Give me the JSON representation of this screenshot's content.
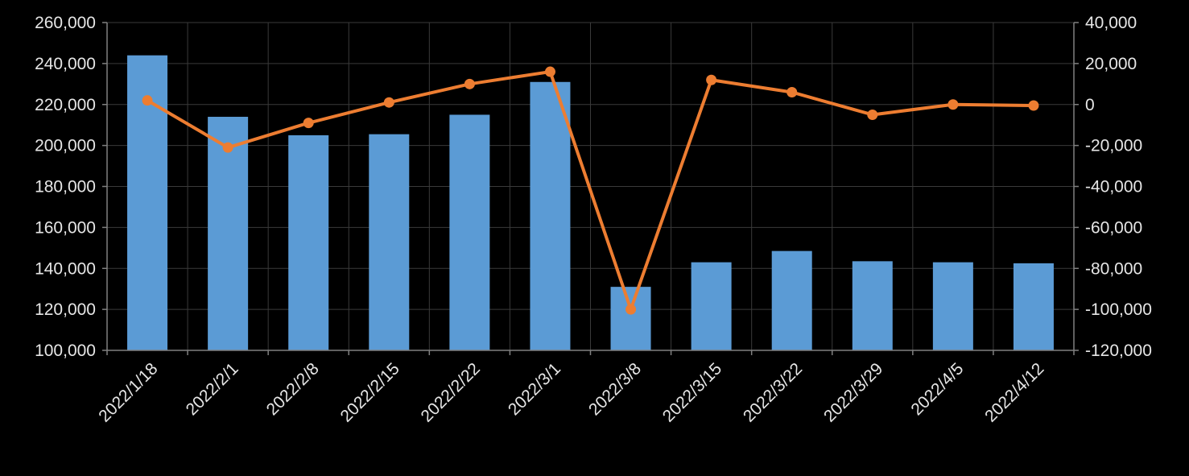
{
  "chart_data": {
    "type": "bar+line",
    "title": "",
    "categories": [
      "2022/1/18",
      "2022/2/1",
      "2022/2/8",
      "2022/2/15",
      "2022/2/22",
      "2022/3/1",
      "2022/3/8",
      "2022/3/15",
      "2022/3/22",
      "2022/3/29",
      "2022/4/5",
      "2022/4/12"
    ],
    "series": [
      {
        "type": "bar",
        "axis": "left",
        "color": "#5b9bd5",
        "values": [
          244000,
          214000,
          205000,
          205500,
          215000,
          231000,
          131000,
          143000,
          148500,
          143500,
          143000,
          142500
        ]
      },
      {
        "type": "line",
        "axis": "right",
        "color": "#ed7d31",
        "values": [
          2000,
          -21000,
          -9000,
          1000,
          10000,
          16000,
          -100000,
          12000,
          6000,
          -5000,
          0,
          -500
        ]
      }
    ],
    "y_left": {
      "min": 100000,
      "max": 260000,
      "ticks": [
        "100,000",
        "120,000",
        "140,000",
        "160,000",
        "180,000",
        "200,000",
        "220,000",
        "240,000",
        "260,000"
      ]
    },
    "y_right": {
      "min": -120000,
      "max": 40000,
      "ticks": [
        "-120,000",
        "-100,000",
        "-80,000",
        "-60,000",
        "-40,000",
        "-20,000",
        "0",
        "20,000",
        "40,000"
      ]
    },
    "grid": true,
    "legend": "none",
    "colors": {
      "background": "#000000",
      "grid": "#3a3a3a",
      "axis": "#808080",
      "text": "#e6e6e6"
    }
  }
}
